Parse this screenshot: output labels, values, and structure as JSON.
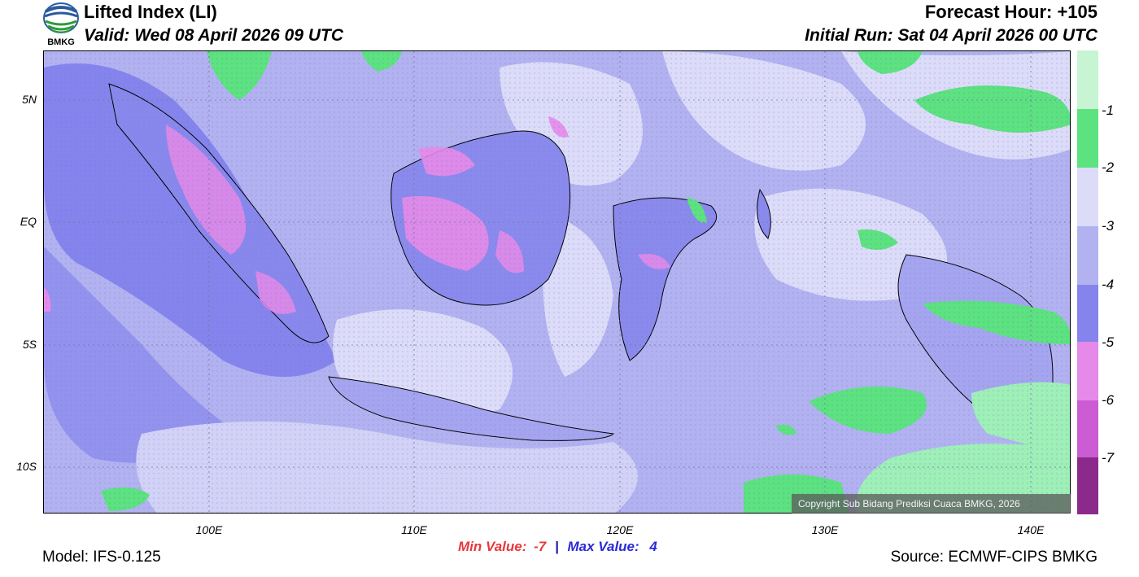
{
  "header": {
    "title": "Lifted Index (LI)",
    "valid": "Valid: Wed 08 April 2026 09 UTC",
    "forecast_hour": "Forecast Hour: +105",
    "initial_run": "Initial Run: Sat 04 April 2026 00 UTC",
    "logo_text": "BMKG"
  },
  "map": {
    "lat_ticks": [
      "5N",
      "EQ",
      "5S",
      "10S"
    ],
    "lon_ticks": [
      "100E",
      "110E",
      "120E",
      "130E",
      "140E"
    ],
    "copyright": "Copyright Sub Bidang Prediksi Cuaca BMKG, 2026"
  },
  "colorbar": {
    "labels": [
      "-1",
      "-2",
      "-3",
      "-4",
      "-5",
      "-6",
      "-7"
    ],
    "colors": [
      "#c7f5d3",
      "#9ef0b6",
      "#5ce27f",
      "#dcdcf8",
      "#b2b2f0",
      "#8484ec",
      "#e58ae8",
      "#cb5cd3",
      "#b148b8",
      "#8c2a8c"
    ]
  },
  "stats": {
    "min_label": "Min Value:",
    "min_value": "-7",
    "separator": "|",
    "max_label": "Max Value:",
    "max_value": "4"
  },
  "footer": {
    "model": "Model: IFS-0.125",
    "source": "Source: ECMWF-CIPS BMKG"
  }
}
